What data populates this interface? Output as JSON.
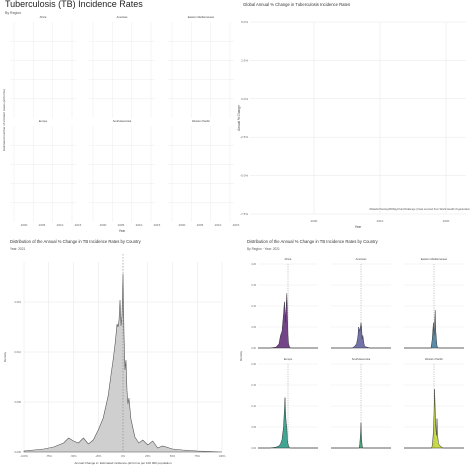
{
  "title_main": "Tuberculosis (TB) Incidence Rates",
  "subtitle_main": "By Region",
  "tr_title": "Global Annual % Change in Tuberculosis Incidence Rates",
  "bl_title": "Distribution of the Annual % Change in TB Incidence Rates by Country",
  "bl_subtitle": "Year: 2021",
  "br_title": "Distribution of the Annual % Change in TB Incidence Rates by Country",
  "br_subtitle": "By Region · Year: 2021",
  "caption": "#DataVizSociety#30DayChartChallenge | Data sourced from World Health Organization",
  "colors": {
    "Africa": "#6b3a82",
    "Americas": "#6b6aa6",
    "Eastern Mediterranean": "#4e86a6",
    "Europe": "#38a08e",
    "South-East Asia": "#3aa876",
    "Western Pacific": "#c7d93a",
    "grey_fill": "#cfcfcf",
    "grid": "#e6e6e6"
  },
  "chart_data": [
    {
      "type": "line",
      "id": "tl",
      "title": "Tuberculosis (TB) Incidence Rates",
      "subtitle": "By Region",
      "xlabel": "Year",
      "ylabel": "Estimated number of incident cases (all forms)",
      "x_ticks": [
        "2000",
        "2005",
        "2010",
        "2015"
      ],
      "panels": [
        "Africa",
        "Americas",
        "Eastern Mediterranean",
        "Europe",
        "South-East Asia",
        "Western Pacific"
      ],
      "grid": true
    },
    {
      "type": "line",
      "id": "tr",
      "title": "Global Annual % Change in Tuberculosis Incidence Rates",
      "xlabel": "Year",
      "ylabel": "Annual % Change",
      "x_ticks": [
        "2000",
        "2010",
        "2020"
      ],
      "y_ticks": [
        "5.0%",
        "2.5%",
        "0.0%",
        "-2.5%",
        "-5.0%",
        "-7.5%"
      ],
      "grid": true
    },
    {
      "type": "area",
      "id": "bl",
      "title": "Distribution of the Annual % Change in TB Incidence Rates by Country",
      "subtitle": "Year: 2021",
      "xlabel": "Annual Change in: Estimated incidence (all forms per 100 000 population",
      "ylabel": "Density",
      "x_ticks": [
        "-100%",
        "-75%",
        "-50%",
        "-25%",
        "0%",
        "25%",
        "50%",
        "75%",
        "100%"
      ],
      "y_ticks": [
        "0.000",
        "0.005",
        "0.010",
        "0.015"
      ],
      "xlim": [
        -100,
        100
      ],
      "ylim": [
        0,
        0.019
      ],
      "reference_line": 0,
      "x": [
        -100,
        -90,
        -80,
        -70,
        -60,
        -55,
        -50,
        -45,
        -40,
        -35,
        -30,
        -25,
        -20,
        -15,
        -12,
        -10,
        -8,
        -6,
        -5,
        -4,
        -3,
        -2,
        -1,
        0,
        1,
        2,
        3,
        4,
        5,
        6,
        8,
        10,
        12,
        14,
        16,
        20,
        25,
        30,
        35,
        40,
        50,
        60,
        75,
        100
      ],
      "y": [
        0.0001,
        0.0002,
        0.0003,
        0.0005,
        0.0009,
        0.0014,
        0.0011,
        0.0009,
        0.0014,
        0.0008,
        0.0012,
        0.0022,
        0.0034,
        0.0056,
        0.0078,
        0.0092,
        0.0108,
        0.0128,
        0.0125,
        0.0132,
        0.0152,
        0.0126,
        0.0137,
        0.0178,
        0.0118,
        0.0082,
        0.0092,
        0.0062,
        0.0048,
        0.0054,
        0.0033,
        0.0024,
        0.0015,
        0.0012,
        0.0009,
        0.0012,
        0.0007,
        0.0011,
        0.0004,
        0.0006,
        0.0003,
        0.0002,
        0.0001,
        0.0
      ]
    },
    {
      "type": "area",
      "id": "br",
      "title": "Distribution of the Annual % Change in TB Incidence Rates by Country",
      "subtitle": "By Region · Year: 2021",
      "ylabel": "Density",
      "y_ticks": [
        "0.00",
        "0.05",
        "0.10",
        "0.15",
        "0.20"
      ],
      "xlim": [
        -100,
        100
      ],
      "ylim": [
        0,
        0.2
      ],
      "reference_line": 0,
      "x": [
        -100,
        -60,
        -40,
        -30,
        -25,
        -20,
        -15,
        -12,
        -10,
        -8,
        -6,
        -4,
        -2,
        0,
        2,
        4,
        6,
        8,
        10,
        12,
        15,
        20,
        30,
        40,
        60,
        100
      ],
      "series": [
        {
          "name": "Africa",
          "values": [
            0,
            0,
            0.002,
            0.01,
            0.03,
            0.04,
            0.08,
            0.11,
            0.09,
            0.06,
            0.1,
            0.13,
            0.08,
            0.03,
            0.01,
            0.005,
            0.002,
            0,
            0,
            0,
            0,
            0,
            0,
            0,
            0,
            0
          ]
        },
        {
          "name": "Americas",
          "values": [
            0,
            0,
            0,
            0,
            0.002,
            0.005,
            0.01,
            0.02,
            0.03,
            0.05,
            0.045,
            0.04,
            0.05,
            0.06,
            0.05,
            0.02,
            0.03,
            0.02,
            0.01,
            0.005,
            0.003,
            0.002,
            0,
            0,
            0,
            0
          ]
        },
        {
          "name": "Eastern Mediterranean",
          "values": [
            0,
            0,
            0,
            0,
            0,
            0,
            0,
            0,
            0,
            0.01,
            0.02,
            0.04,
            0.06,
            0.03,
            0.05,
            0.09,
            0.04,
            0.02,
            0.005,
            0.002,
            0,
            0,
            0,
            0,
            0,
            0
          ]
        },
        {
          "name": "Europe",
          "values": [
            0,
            0,
            0.002,
            0.005,
            0.01,
            0.02,
            0.05,
            0.09,
            0.12,
            0.08,
            0.06,
            0.05,
            0.02,
            0.01,
            0.005,
            0.002,
            0,
            0,
            0,
            0,
            0,
            0,
            0,
            0,
            0,
            0
          ]
        },
        {
          "name": "South-East Asia",
          "values": [
            0,
            0,
            0,
            0,
            0,
            0,
            0,
            0,
            0,
            0,
            0,
            0.01,
            0.03,
            0.06,
            0.02,
            0.005,
            0,
            0,
            0,
            0,
            0,
            0,
            0,
            0,
            0,
            0
          ]
        },
        {
          "name": "Western Pacific",
          "values": [
            0,
            0,
            0,
            0,
            0,
            0,
            0,
            0,
            0,
            0,
            0.005,
            0.02,
            0.04,
            0.08,
            0.14,
            0.09,
            0.05,
            0.03,
            0.07,
            0.03,
            0.01,
            0.005,
            0,
            0,
            0,
            0
          ]
        }
      ]
    }
  ]
}
